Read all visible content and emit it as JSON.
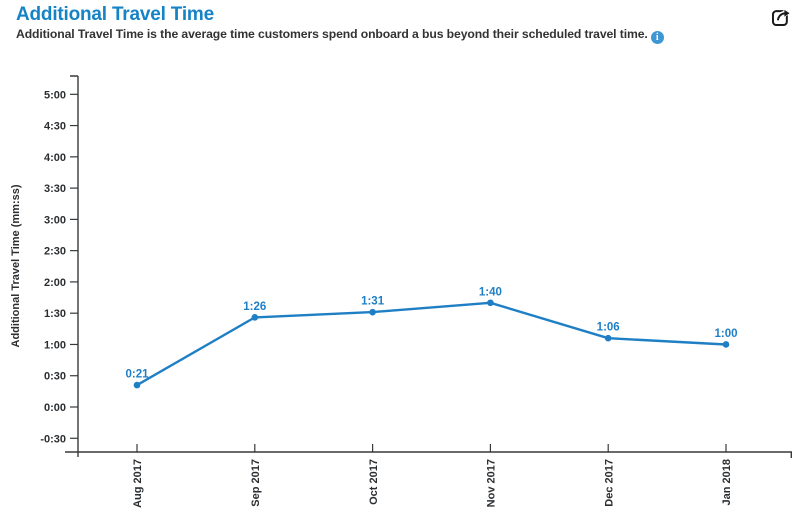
{
  "header": {
    "title": "Additional Travel Time",
    "subtitle": "Additional Travel Time is the average time customers spend onboard a bus beyond their scheduled travel time.",
    "info_glyph": "i",
    "info_icon": "info-circle-icon",
    "share_icon": "share-export-icon"
  },
  "colors": {
    "title_blue": "#1583c5",
    "series_blue": "#1f7fc5",
    "info_blue": "#3e96d2",
    "axis_dark": "#37393b",
    "tick_text": "#2b2e31",
    "subtitle_text": "#333333"
  },
  "chart_data": {
    "type": "line",
    "title": "Additional Travel Time",
    "x": [
      "Aug 2017",
      "Sep 2017",
      "Oct 2017",
      "Nov 2017",
      "Dec 2017",
      "Jan 2018"
    ],
    "series": [
      {
        "name": "Additional Travel Time",
        "labels_mmss": [
          "0:21",
          "1:26",
          "1:31",
          "1:40",
          "1:06",
          "1:00"
        ],
        "values_seconds": [
          21,
          86,
          91,
          100,
          66,
          60
        ],
        "color": "#1f7fc5"
      }
    ],
    "ylabel": "Additional Travel Time (mm:ss)",
    "yticks_mmss": [
      "5:00",
      "4:30",
      "4:00",
      "3:30",
      "3:00",
      "2:30",
      "2:00",
      "1:30",
      "1:00",
      "0:30",
      "0:00",
      "-0:30"
    ],
    "yticks_seconds": [
      300,
      270,
      240,
      210,
      180,
      150,
      120,
      90,
      60,
      30,
      0,
      -30
    ],
    "ylim_seconds": [
      -30,
      300
    ],
    "grid": false,
    "legend": "none",
    "marker": "circle"
  }
}
